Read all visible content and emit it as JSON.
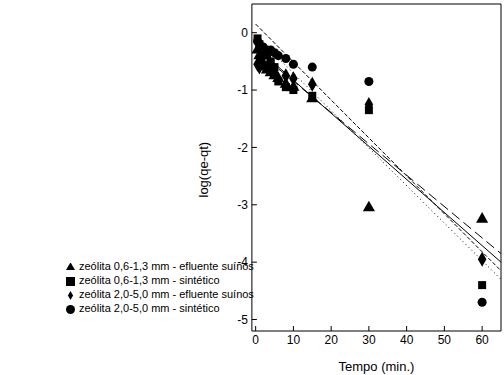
{
  "chart_data": {
    "type": "scatter",
    "x_label": "Tempo (min.)",
    "y_label": "log(qe-qt)",
    "xlim": [
      -1,
      65
    ],
    "ylim": [
      -5.2,
      0.5
    ],
    "xticks": [
      0,
      10,
      20,
      30,
      40,
      50,
      60
    ],
    "yticks": [
      0,
      -1,
      -2,
      -3,
      -4,
      -5
    ],
    "legend": "lower left",
    "series": [
      {
        "name": "zeólita 0,6-1,3 mm - sintético",
        "type": "scatter",
        "marker": "square",
        "color": "#000000",
        "x": [
          0.5,
          1,
          1.5,
          2,
          3,
          4,
          5,
          6,
          8,
          10,
          15,
          30,
          60
        ],
        "values": [
          -0.1,
          -0.2,
          -0.3,
          -0.35,
          -0.4,
          -0.5,
          -0.6,
          -0.85,
          -0.95,
          -1.0,
          -1.1,
          -1.35,
          -4.4
        ]
      },
      {
        "name": "zeólita 2,0-5,0 mm - sintético",
        "type": "scatter",
        "marker": "circle",
        "color": "#000000",
        "x": [
          0.5,
          1,
          2,
          3,
          4,
          5,
          6,
          8,
          10,
          15,
          30,
          60
        ],
        "values": [
          -0.15,
          -0.2,
          -0.25,
          -0.3,
          -0.3,
          -0.35,
          -0.4,
          -0.45,
          -0.55,
          -0.6,
          -0.85,
          -4.7
        ]
      },
      {
        "name": "zeólita 0,6-1,3 mm - efluente suínos",
        "type": "scatter",
        "marker": "triangle",
        "color": "#000000",
        "x": [
          0.5,
          1,
          1.5,
          2,
          3,
          4,
          5,
          6,
          8,
          10,
          15,
          30,
          60
        ],
        "values": [
          -0.3,
          -0.4,
          -0.5,
          -0.55,
          -0.65,
          -0.7,
          -0.75,
          -0.8,
          -0.9,
          -0.95,
          -1.15,
          -3.05,
          -3.25
        ]
      },
      {
        "name": "zeólita 2,0-5,0 mm - efluente suínos",
        "type": "scatter",
        "marker": "diamond",
        "color": "#000000",
        "x": [
          0.5,
          1,
          1.5,
          2,
          3,
          4,
          5,
          8,
          10,
          15,
          30,
          60
        ],
        "values": [
          -0.55,
          -0.6,
          -0.5,
          -0.55,
          -0.6,
          -0.65,
          -0.7,
          -0.75,
          -0.8,
          -0.9,
          -1.25,
          -3.95
        ]
      },
      {
        "type": "line",
        "line_style": "solid",
        "color": "#000000",
        "x": [
          0,
          65
        ],
        "values": [
          -0.25,
          -4.0
        ]
      },
      {
        "type": "line",
        "line_style": "dashed",
        "color": "#000000",
        "x": [
          0,
          65
        ],
        "values": [
          -0.3,
          -3.85
        ]
      },
      {
        "type": "line",
        "line_style": "dotted",
        "color": "#000000",
        "x": [
          0,
          65
        ],
        "values": [
          -0.05,
          -4.3
        ]
      },
      {
        "type": "line",
        "line_style": "dashdot",
        "color": "#000000",
        "x": [
          0,
          65
        ],
        "values": [
          0.15,
          -4.15
        ]
      }
    ]
  }
}
